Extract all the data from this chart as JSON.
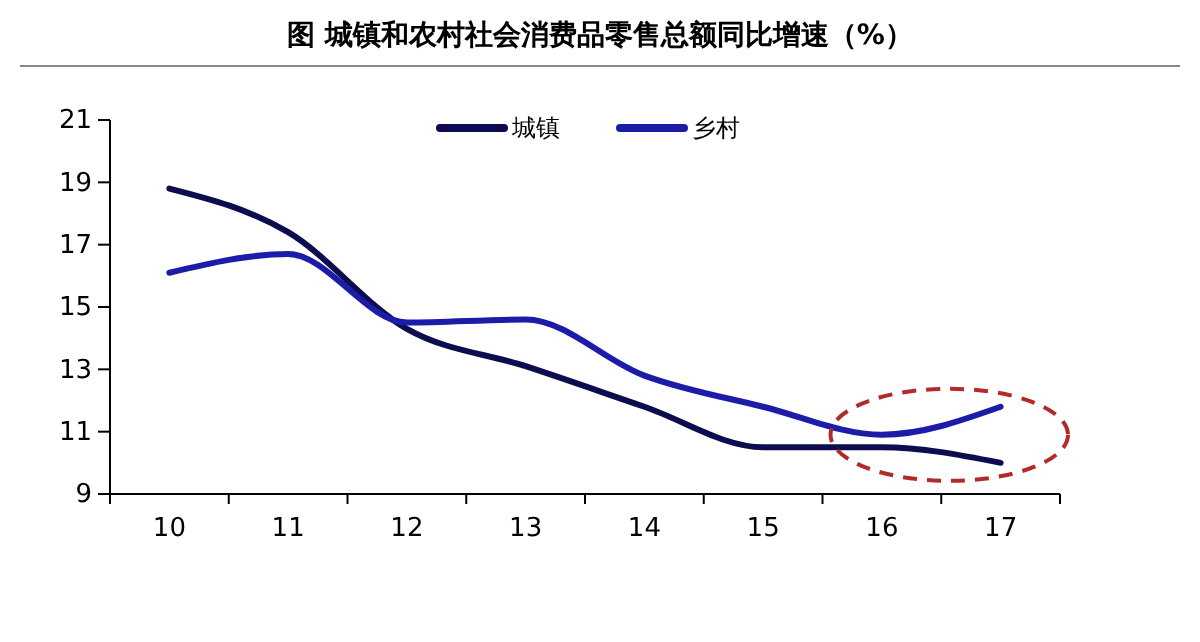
{
  "chart_data": {
    "type": "line",
    "title": "图  城镇和农村社会消费品零售总额同比增速（%）",
    "categories": [
      "10",
      "11",
      "12",
      "13",
      "14",
      "15",
      "16",
      "17"
    ],
    "series": [
      {
        "name": "城镇",
        "color": "#0c0c4e",
        "values": [
          18.8,
          17.4,
          14.3,
          13.1,
          11.8,
          10.5,
          10.5,
          10.0
        ]
      },
      {
        "name": "乡村",
        "color": "#1c1ca8",
        "values": [
          16.1,
          16.7,
          14.5,
          14.6,
          12.8,
          11.8,
          10.9,
          11.8
        ]
      }
    ],
    "ylim": [
      9,
      21
    ],
    "yticks": [
      9,
      11,
      13,
      15,
      17,
      19,
      21
    ],
    "legend": "top",
    "grid": false
  }
}
